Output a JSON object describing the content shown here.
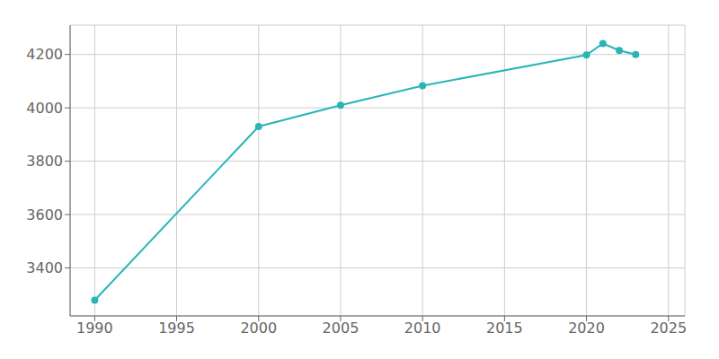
{
  "chart_data": {
    "type": "line",
    "x": [
      1990,
      2000,
      2005,
      2010,
      2020,
      2021,
      2022,
      2023
    ],
    "values": [
      3279,
      3930,
      4010,
      4083,
      4198,
      4241,
      4215,
      4200
    ],
    "color": "#2ab5b5",
    "marker": "circle",
    "xlim": [
      1988.5,
      2026
    ],
    "ylim": [
      3220,
      4310
    ],
    "xticks": [
      1990,
      1995,
      2000,
      2005,
      2010,
      2015,
      2020,
      2025
    ],
    "yticks": [
      3400,
      3600,
      3800,
      4000,
      4200
    ],
    "grid": true
  }
}
